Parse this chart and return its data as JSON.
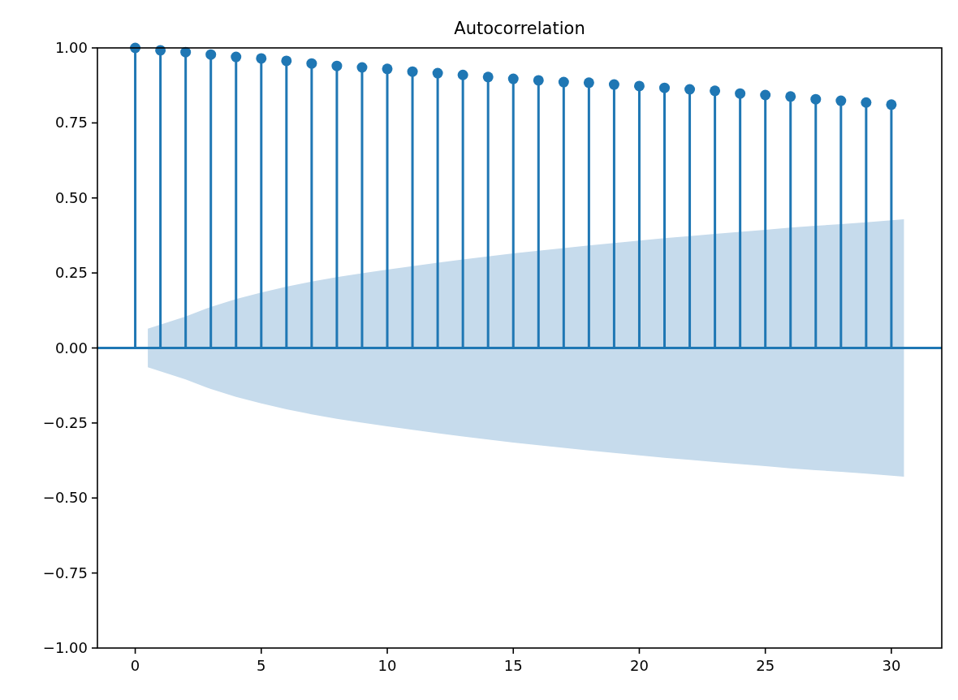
{
  "chart_data": {
    "type": "lollipop",
    "title": "Autocorrelation",
    "x": [
      0,
      1,
      2,
      3,
      4,
      5,
      6,
      7,
      8,
      9,
      10,
      11,
      12,
      13,
      14,
      15,
      16,
      17,
      18,
      19,
      20,
      21,
      22,
      23,
      24,
      25,
      26,
      27,
      28,
      29,
      30
    ],
    "series": [
      {
        "color": "#1f77b4",
        "marker": "circle",
        "values": [
          1.0,
          0.992,
          0.986,
          0.978,
          0.97,
          0.965,
          0.957,
          0.948,
          0.94,
          0.935,
          0.93,
          0.921,
          0.916,
          0.91,
          0.903,
          0.897,
          0.892,
          0.886,
          0.884,
          0.878,
          0.873,
          0.867,
          0.862,
          0.857,
          0.848,
          0.843,
          0.838,
          0.829,
          0.824,
          0.818,
          0.811
        ]
      },
      {
        "type": "area",
        "color": "#c6dbec",
        "x": [
          0.5,
          2,
          3,
          4,
          5,
          6,
          7,
          8,
          9,
          10,
          11,
          12,
          13,
          14,
          15,
          16,
          17,
          18,
          19,
          20,
          21,
          22,
          23,
          24,
          25,
          26,
          27,
          28,
          29,
          30.5
        ],
        "values": [
          0.064,
          0.105,
          0.137,
          0.163,
          0.185,
          0.204,
          0.221,
          0.236,
          0.249,
          0.261,
          0.273,
          0.284,
          0.295,
          0.305,
          0.315,
          0.324,
          0.333,
          0.342,
          0.35,
          0.358,
          0.366,
          0.373,
          0.38,
          0.387,
          0.394,
          0.401,
          0.407,
          0.413,
          0.419,
          0.429
        ]
      },
      {
        "type": "area",
        "color": "#c6dbec",
        "x": [
          0.5,
          2,
          3,
          4,
          5,
          6,
          7,
          8,
          9,
          10,
          11,
          12,
          13,
          14,
          15,
          16,
          17,
          18,
          19,
          20,
          21,
          22,
          23,
          24,
          25,
          26,
          27,
          28,
          29,
          30.5
        ],
        "values": [
          -0.064,
          -0.105,
          -0.137,
          -0.163,
          -0.185,
          -0.204,
          -0.221,
          -0.236,
          -0.249,
          -0.261,
          -0.273,
          -0.284,
          -0.295,
          -0.305,
          -0.315,
          -0.324,
          -0.333,
          -0.342,
          -0.35,
          -0.358,
          -0.366,
          -0.373,
          -0.38,
          -0.387,
          -0.394,
          -0.401,
          -0.407,
          -0.413,
          -0.419,
          -0.429
        ]
      }
    ],
    "ref_lines": [
      {
        "axis": "y",
        "value": 0,
        "color": "#1f77b4"
      }
    ],
    "xlim": [
      -1.5,
      32
    ],
    "xticks": [
      0,
      5,
      10,
      15,
      20,
      25,
      30
    ],
    "ylim": [
      -1,
      1
    ],
    "yticks": [
      {
        "value": -1,
        "label": "−1.00"
      },
      {
        "value": -0.75,
        "label": "−0.75"
      },
      {
        "value": -0.5,
        "label": "−0.50"
      },
      {
        "value": -0.25,
        "label": "−0.25"
      },
      {
        "value": 0,
        "label": "0.00"
      },
      {
        "value": 0.25,
        "label": "0.25"
      },
      {
        "value": 0.5,
        "label": "0.50"
      },
      {
        "value": 0.75,
        "label": "0.75"
      },
      {
        "value": 1,
        "label": "1.00"
      }
    ],
    "grid": false
  }
}
